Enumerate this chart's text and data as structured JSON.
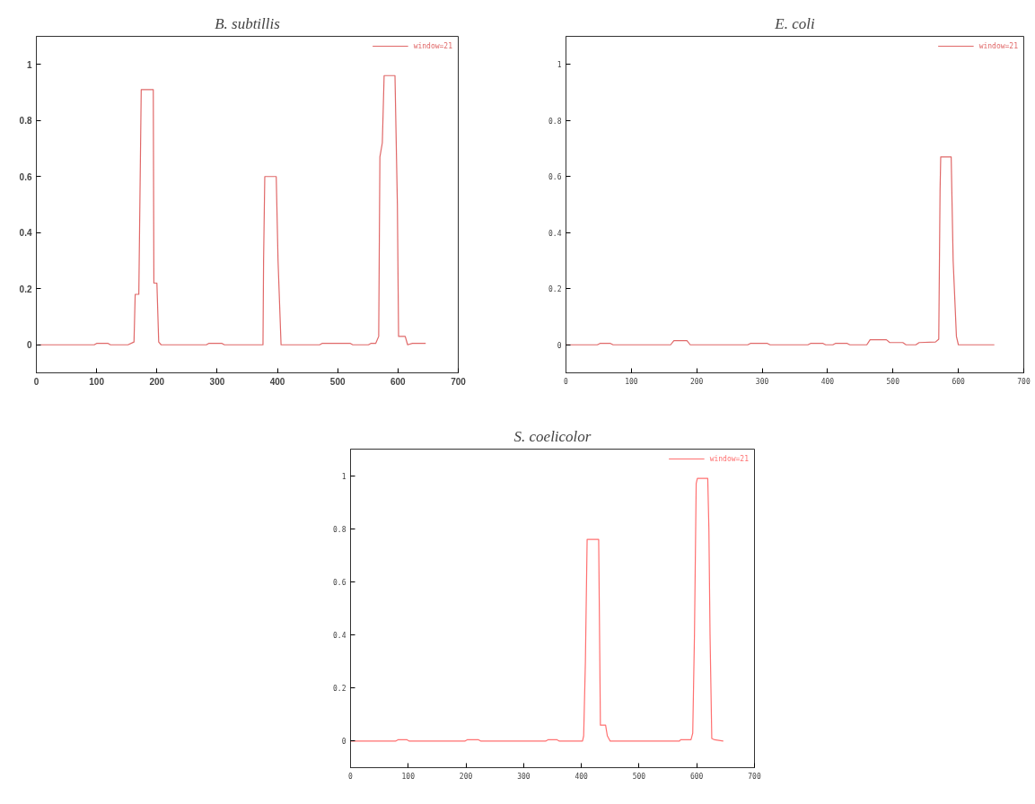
{
  "chart_data": [
    {
      "type": "line",
      "title": "B. subtillis",
      "xlim": [
        0,
        700
      ],
      "ylim": [
        -0.1,
        1.1
      ],
      "xticks": [
        0,
        100,
        200,
        300,
        400,
        500,
        600,
        700
      ],
      "yticks": [
        0,
        0.2,
        0.4,
        0.6,
        0.8,
        1
      ],
      "legend": "top right",
      "grid": false,
      "series": [
        {
          "name": "window=21",
          "color": "#e06868",
          "x": [
            3,
            96,
            100,
            119,
            123,
            152,
            162,
            164,
            170,
            174,
            194,
            195,
            200,
            203,
            207,
            282,
            286,
            308,
            312,
            376,
            377,
            379,
            398,
            401,
            406,
            470,
            474,
            521,
            525,
            551,
            555,
            563,
            568,
            570,
            574,
            577,
            595,
            599,
            601,
            612,
            616,
            624,
            646
          ],
          "values": [
            0,
            0,
            0.005,
            0.005,
            0,
            0,
            0.01,
            0.18,
            0.18,
            0.91,
            0.91,
            0.22,
            0.22,
            0.01,
            0,
            0,
            0.005,
            0.005,
            0,
            0,
            0.3,
            0.6,
            0.6,
            0.3,
            0,
            0,
            0.005,
            0.005,
            0,
            0,
            0.005,
            0.005,
            0.03,
            0.67,
            0.72,
            0.96,
            0.96,
            0.5,
            0.03,
            0.03,
            0,
            0.005,
            0.005
          ]
        }
      ]
    },
    {
      "type": "line",
      "title": "E. coli",
      "xlim": [
        0,
        700
      ],
      "ylim": [
        -0.1,
        1.1
      ],
      "xticks": [
        0,
        100,
        200,
        300,
        400,
        500,
        600,
        700
      ],
      "yticks": [
        0,
        0.2,
        0.4,
        0.6,
        0.8,
        1
      ],
      "legend": "top right",
      "grid": false,
      "series": [
        {
          "name": "window=21",
          "color": "#e06868",
          "x": [
            0,
            48,
            52,
            68,
            72,
            160,
            165,
            185,
            190,
            278,
            282,
            308,
            312,
            370,
            374,
            393,
            397,
            408,
            412,
            430,
            434,
            460,
            465,
            490,
            495,
            515,
            520,
            535,
            540,
            565,
            570,
            572,
            573,
            589,
            592,
            597,
            600,
            655
          ],
          "values": [
            0,
            0,
            0.005,
            0.005,
            0,
            0,
            0.015,
            0.015,
            0,
            0,
            0.005,
            0.005,
            0,
            0,
            0.005,
            0.005,
            0,
            0,
            0.005,
            0.005,
            0,
            0,
            0.018,
            0.018,
            0.008,
            0.008,
            0,
            0,
            0.008,
            0.01,
            0.02,
            0.55,
            0.67,
            0.67,
            0.3,
            0.03,
            0,
            0
          ]
        }
      ]
    },
    {
      "type": "line",
      "title": "S. coelicolor",
      "xlim": [
        0,
        700
      ],
      "ylim": [
        -0.1,
        1.1
      ],
      "xticks": [
        0,
        100,
        200,
        300,
        400,
        500,
        600,
        700
      ],
      "yticks": [
        0,
        0.2,
        0.4,
        0.6,
        0.8,
        1
      ],
      "legend": "top right",
      "grid": false,
      "series": [
        {
          "name": "window=21",
          "color": "#ff7070",
          "x": [
            0,
            78,
            82,
            98,
            102,
            198,
            202,
            222,
            226,
            338,
            342,
            358,
            362,
            402,
            404,
            407,
            410,
            430,
            432,
            433,
            442,
            445,
            450,
            570,
            572,
            590,
            593,
            596,
            599,
            601,
            619,
            621,
            623,
            626,
            631,
            646
          ],
          "values": [
            0,
            0,
            0.005,
            0.005,
            0,
            0,
            0.005,
            0.005,
            0,
            0,
            0.005,
            0.005,
            0,
            0,
            0.02,
            0.3,
            0.76,
            0.76,
            0.3,
            0.06,
            0.06,
            0.02,
            0,
            0,
            0.005,
            0.005,
            0.03,
            0.4,
            0.97,
            0.99,
            0.99,
            0.8,
            0.4,
            0.01,
            0.005,
            0
          ]
        }
      ]
    }
  ]
}
